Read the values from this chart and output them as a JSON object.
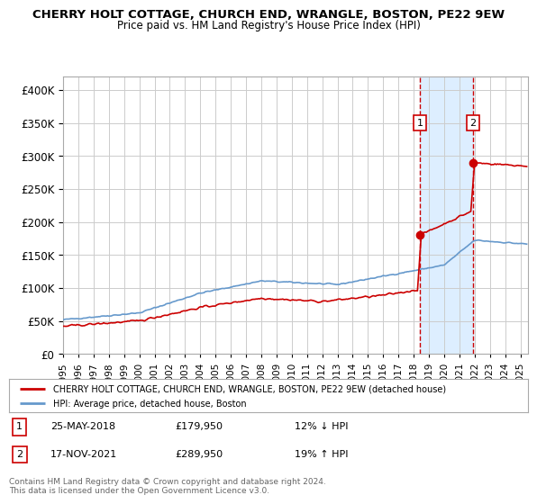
{
  "title": "CHERRY HOLT COTTAGE, CHURCH END, WRANGLE, BOSTON, PE22 9EW",
  "subtitle": "Price paid vs. HM Land Registry's House Price Index (HPI)",
  "ylabel_ticks": [
    "£0",
    "£50K",
    "£100K",
    "£150K",
    "£200K",
    "£250K",
    "£300K",
    "£350K",
    "£400K"
  ],
  "ytick_vals": [
    0,
    50000,
    100000,
    150000,
    200000,
    250000,
    300000,
    350000,
    400000
  ],
  "ylim": [
    0,
    420000
  ],
  "xlim_start": 1995.0,
  "xlim_end": 2025.5,
  "sale1_date": 2018.4,
  "sale1_price": 179950,
  "sale1_label": "1",
  "sale2_date": 2021.88,
  "sale2_price": 289950,
  "sale2_label": "2",
  "hpi_color": "#6699cc",
  "property_color": "#cc0000",
  "sale_marker_color": "#cc0000",
  "grid_color": "#cccccc",
  "background_color": "#ffffff",
  "legend_line1": "CHERRY HOLT COTTAGE, CHURCH END, WRANGLE, BOSTON, PE22 9EW (detached house)",
  "legend_line2": "HPI: Average price, detached house, Boston",
  "table_row1": [
    "1",
    "25-MAY-2018",
    "£179,950",
    "12% ↓ HPI"
  ],
  "table_row2": [
    "2",
    "17-NOV-2021",
    "£289,950",
    "19% ↑ HPI"
  ],
  "footer": "Contains HM Land Registry data © Crown copyright and database right 2024.\nThis data is licensed under the Open Government Licence v3.0.",
  "shade_color": "#ddeeff",
  "dashed_color": "#cc0000"
}
